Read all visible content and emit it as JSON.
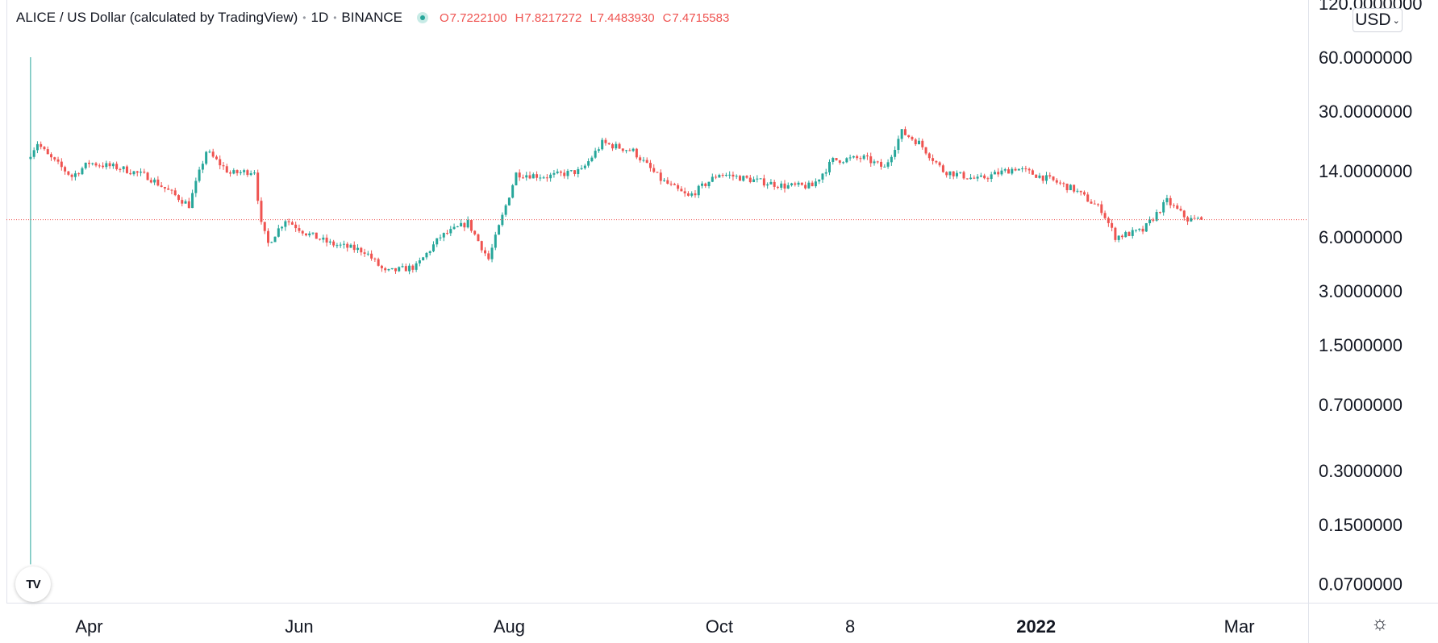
{
  "legend": {
    "symbol": "ALICE / US Dollar (calculated by TradingView)",
    "interval": "1D",
    "exchange": "BINANCE",
    "open_label": "O",
    "open": "7.7222100",
    "high_label": "H",
    "high": "7.8217272",
    "low_label": "L",
    "low": "7.4483930",
    "close_label": "C",
    "close": "7.4715583"
  },
  "currency": {
    "label": "USD",
    "chevron": "⌄"
  },
  "logo": {
    "text": "TV",
    "icon": "tradingview-logo"
  },
  "settings": {
    "icon": "gear-icon",
    "glyph": "☼"
  },
  "colors": {
    "up": "#26a69a",
    "down": "#ef5350",
    "price_line": "#ef5350"
  },
  "chart_data": {
    "type": "candlestick",
    "scale": "log",
    "y_range": [
      0.055,
      125
    ],
    "y_tick_labels": [
      {
        "value": 120,
        "label": "120.0000000"
      },
      {
        "value": 60,
        "label": "60.0000000"
      },
      {
        "value": 30,
        "label": "30.0000000"
      },
      {
        "value": 14,
        "label": "14.0000000"
      },
      {
        "value": 6,
        "label": "6.0000000"
      },
      {
        "value": 3,
        "label": "3.0000000"
      },
      {
        "value": 1.5,
        "label": "1.5000000"
      },
      {
        "value": 0.7,
        "label": "0.7000000"
      },
      {
        "value": 0.3,
        "label": "0.3000000"
      },
      {
        "value": 0.15,
        "label": "0.1500000"
      },
      {
        "value": 0.07,
        "label": "0.0700000"
      }
    ],
    "x_tick_labels": [
      {
        "date": "2021-04-01",
        "label": "Apr",
        "bold": false
      },
      {
        "date": "2021-06-01",
        "label": "Jun",
        "bold": false
      },
      {
        "date": "2021-08-01",
        "label": "Aug",
        "bold": false
      },
      {
        "date": "2021-10-01",
        "label": "Oct",
        "bold": false
      },
      {
        "date": "2021-11-08",
        "label": "8",
        "bold": false
      },
      {
        "date": "2022-01-01",
        "label": "2022",
        "bold": true
      },
      {
        "date": "2022-03-01",
        "label": "Mar",
        "bold": false
      }
    ],
    "x_range": [
      "2021-03-08",
      "2022-03-21"
    ],
    "series_anchors": {
      "dates": [
        "2021-03-15",
        "2021-03-17",
        "2021-03-20",
        "2021-03-27",
        "2021-04-01",
        "2021-04-10",
        "2021-04-18",
        "2021-04-25",
        "2021-04-30",
        "2021-05-05",
        "2021-05-12",
        "2021-05-19",
        "2021-05-21",
        "2021-05-23",
        "2021-05-28",
        "2021-06-03",
        "2021-06-10",
        "2021-06-20",
        "2021-06-26",
        "2021-07-05",
        "2021-07-12",
        "2021-07-20",
        "2021-07-26",
        "2021-08-03",
        "2021-08-12",
        "2021-08-22",
        "2021-08-28",
        "2021-09-06",
        "2021-09-14",
        "2021-09-22",
        "2021-10-01",
        "2021-10-10",
        "2021-10-20",
        "2021-10-28",
        "2021-11-03",
        "2021-11-12",
        "2021-11-18",
        "2021-11-23",
        "2021-11-28",
        "2021-12-05",
        "2021-12-15",
        "2021-12-26",
        "2022-01-05",
        "2022-01-12",
        "2022-01-20",
        "2022-01-24",
        "2022-02-01",
        "2022-02-08",
        "2022-02-14",
        "2022-02-18"
      ],
      "closes": [
        17.5,
        20.0,
        17.0,
        13.0,
        15.5,
        14.5,
        13.0,
        10.5,
        9.0,
        18.0,
        13.5,
        14.0,
        7.0,
        5.5,
        7.5,
        6.3,
        5.5,
        5.0,
        3.8,
        4.1,
        6.0,
        7.2,
        4.5,
        13.5,
        13.0,
        14.0,
        20.0,
        18.0,
        12.5,
        10.0,
        13.5,
        12.5,
        11.5,
        11.5,
        16.0,
        16.5,
        14.5,
        23.0,
        20.0,
        14.0,
        12.5,
        14.5,
        12.5,
        11.0,
        8.5,
        6.0,
        6.5,
        9.5,
        7.5,
        7.47
      ]
    },
    "last_candle": {
      "open": 7.72221,
      "high": 7.8217272,
      "low": 7.448393,
      "close": 7.4715583
    },
    "listing_spike": {
      "date": "2021-03-15",
      "high": 60,
      "low": 0.09
    },
    "grid": false,
    "legend_position": "top-left"
  }
}
